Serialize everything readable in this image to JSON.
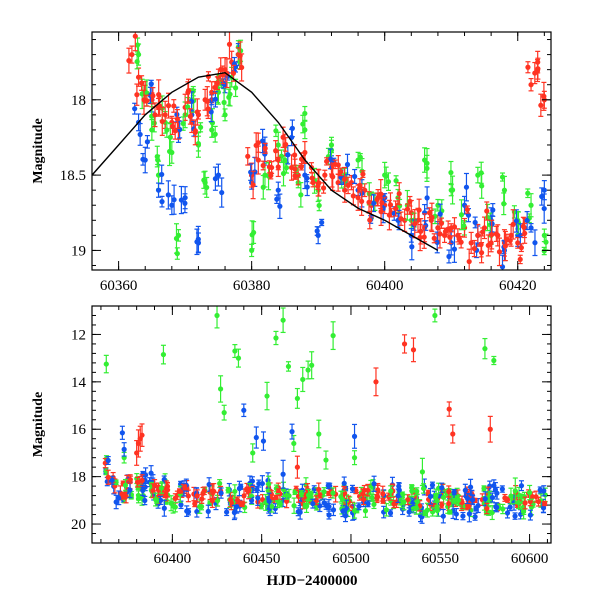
{
  "figure": {
    "xlabel": "HJD−2400000"
  },
  "colors": {
    "green": "#33ee33",
    "blue": "#1155ee",
    "red": "#ff3322",
    "curve": "#000000"
  },
  "chart_data": [
    {
      "type": "scatter",
      "title": "",
      "xlabel": "",
      "ylabel": "Magnitude",
      "xlim": [
        60356,
        60425
      ],
      "ylim": [
        19.13,
        17.55
      ],
      "y_inverted": true,
      "grid": false,
      "x_ticks": [
        60360,
        60380,
        60400,
        60420
      ],
      "y_ticks": [
        18,
        18.5,
        19
      ],
      "error_bars": true,
      "series": [
        {
          "color": "green",
          "points": [
            [
              60363,
              17.7
            ],
            [
              60364,
              17.95
            ],
            [
              60365,
              18.2
            ],
            [
              60366,
              18.5
            ],
            [
              60367,
              18.15
            ],
            [
              60368,
              18.35
            ],
            [
              60369,
              18.9
            ],
            [
              60370,
              18.1
            ],
            [
              60371,
              18.0
            ],
            [
              60372,
              18.3
            ],
            [
              60373,
              18.55
            ],
            [
              60374,
              18.2
            ],
            [
              60375,
              17.95
            ],
            [
              60376,
              18.1
            ],
            [
              60377,
              17.85
            ],
            [
              60378,
              17.65
            ],
            [
              60380,
              19.0
            ],
            [
              60382,
              18.5
            ],
            [
              60384,
              18.3
            ],
            [
              60385,
              18.4
            ],
            [
              60387,
              18.55
            ],
            [
              60388,
              18.2
            ],
            [
              60390,
              18.6
            ],
            [
              60392,
              18.3
            ],
            [
              60394,
              18.5
            ],
            [
              60396,
              18.4
            ],
            [
              60398,
              18.7
            ],
            [
              60400,
              18.5
            ],
            [
              60402,
              18.65
            ],
            [
              60404,
              18.8
            ],
            [
              60406,
              18.4
            ],
            [
              60408,
              18.7
            ],
            [
              60410,
              18.6
            ],
            [
              60412,
              18.85
            ],
            [
              60414,
              18.5
            ],
            [
              60416,
              18.9
            ],
            [
              60418,
              18.6
            ],
            [
              60420,
              18.8
            ],
            [
              60422,
              18.7
            ],
            [
              60424,
              18.9
            ]
          ]
        },
        {
          "color": "blue",
          "points": [
            [
              60363,
              18.15
            ],
            [
              60364,
              18.4
            ],
            [
              60365,
              18.0
            ],
            [
              60366,
              18.6
            ],
            [
              60368,
              18.7
            ],
            [
              60369,
              18.2
            ],
            [
              60370,
              18.65
            ],
            [
              60371,
              18.1
            ],
            [
              60372,
              18.95
            ],
            [
              60374,
              18.0
            ],
            [
              60375,
              18.5
            ],
            [
              60376,
              17.9
            ],
            [
              60378,
              17.7
            ],
            [
              60380,
              18.55
            ],
            [
              60382,
              18.3
            ],
            [
              60384,
              18.6
            ],
            [
              60386,
              18.25
            ],
            [
              60388,
              18.5
            ],
            [
              60390,
              18.9
            ],
            [
              60392,
              18.4
            ],
            [
              60394,
              18.55
            ],
            [
              60396,
              18.6
            ],
            [
              60398,
              18.7
            ],
            [
              60400,
              18.65
            ],
            [
              60402,
              18.8
            ],
            [
              60404,
              18.9
            ],
            [
              60406,
              18.75
            ],
            [
              60408,
              18.85
            ],
            [
              60410,
              18.95
            ],
            [
              60412,
              18.7
            ],
            [
              60414,
              18.9
            ],
            [
              60416,
              18.8
            ],
            [
              60418,
              19.0
            ],
            [
              60420,
              18.9
            ],
            [
              60422,
              18.85
            ],
            [
              60424,
              18.6
            ]
          ]
        },
        {
          "color": "red",
          "points": [
            [
              60362,
              17.7
            ],
            [
              60363,
              17.85
            ],
            [
              60364,
              17.95
            ],
            [
              60365,
              18.0
            ],
            [
              60366,
              18.05
            ],
            [
              60367,
              18.1
            ],
            [
              60368,
              18.15
            ],
            [
              60369,
              18.2
            ],
            [
              60370,
              18.05
            ],
            [
              60371,
              18.15
            ],
            [
              60372,
              18.1
            ],
            [
              60373,
              18.0
            ],
            [
              60374,
              17.95
            ],
            [
              60375,
              17.85
            ],
            [
              60376,
              17.8
            ],
            [
              60377,
              17.75
            ],
            [
              60378,
              17.7
            ],
            [
              60380,
              18.5
            ],
            [
              60381,
              18.4
            ],
            [
              60382,
              18.35
            ],
            [
              60383,
              18.45
            ],
            [
              60384,
              18.4
            ],
            [
              60385,
              18.3
            ],
            [
              60386,
              18.45
            ],
            [
              60387,
              18.5
            ],
            [
              60388,
              18.35
            ],
            [
              60389,
              18.45
            ],
            [
              60390,
              18.55
            ],
            [
              60391,
              18.5
            ],
            [
              60392,
              18.45
            ],
            [
              60393,
              18.55
            ],
            [
              60394,
              18.6
            ],
            [
              60395,
              18.55
            ],
            [
              60396,
              18.65
            ],
            [
              60397,
              18.6
            ],
            [
              60398,
              18.7
            ],
            [
              60399,
              18.65
            ],
            [
              60400,
              18.7
            ],
            [
              60401,
              18.75
            ],
            [
              60402,
              18.7
            ],
            [
              60403,
              18.8
            ],
            [
              60404,
              18.75
            ],
            [
              60405,
              18.8
            ],
            [
              60406,
              18.85
            ],
            [
              60407,
              18.8
            ],
            [
              60408,
              18.85
            ],
            [
              60409,
              18.9
            ],
            [
              60410,
              18.85
            ],
            [
              60411,
              18.9
            ],
            [
              60412,
              18.85
            ],
            [
              60413,
              18.95
            ],
            [
              60414,
              18.9
            ],
            [
              60415,
              18.85
            ],
            [
              60416,
              18.95
            ],
            [
              60417,
              18.9
            ],
            [
              60418,
              18.95
            ],
            [
              60419,
              18.9
            ],
            [
              60420,
              18.95
            ],
            [
              60421,
              18.85
            ],
            [
              60422,
              17.9
            ],
            [
              60423,
              17.75
            ],
            [
              60424,
              18.0
            ]
          ]
        }
      ],
      "model_curve": {
        "color": "curve",
        "x": [
          60356,
          60360,
          60364,
          60368,
          60372,
          60376,
          60380,
          60384,
          60388,
          60392,
          60396,
          60400,
          60404,
          60408
        ],
        "y": [
          18.5,
          18.3,
          18.1,
          17.95,
          17.85,
          17.82,
          17.95,
          18.15,
          18.4,
          18.6,
          18.72,
          18.8,
          18.9,
          19.0
        ]
      }
    },
    {
      "type": "scatter",
      "title": "",
      "xlabel": "HJD−2400000",
      "ylabel": "Magnitude",
      "xlim": [
        60355,
        60612
      ],
      "ylim": [
        20.8,
        10.8
      ],
      "y_inverted": true,
      "grid": false,
      "x_ticks": [
        60400,
        60450,
        60500,
        60550,
        60600
      ],
      "y_ticks": [
        12,
        14,
        16,
        18,
        20
      ],
      "error_bars": true,
      "series": [
        {
          "color": "green",
          "points": [
            [
              60363,
              13.25
            ],
            [
              60373,
              17.2
            ],
            [
              60395,
              12.85
            ],
            [
              60425,
              11.2
            ],
            [
              60427,
              14.3
            ],
            [
              60429,
              15.3
            ],
            [
              60435,
              12.7
            ],
            [
              60437,
              13.0
            ],
            [
              60445,
              17.0
            ],
            [
              60453,
              14.6
            ],
            [
              60458,
              12.15
            ],
            [
              60462,
              11.4
            ],
            [
              60465,
              13.35
            ],
            [
              60468,
              16.6
            ],
            [
              60470,
              14.7
            ],
            [
              60473,
              13.9
            ],
            [
              60476,
              13.5
            ],
            [
              60478,
              13.3
            ],
            [
              60482,
              16.2
            ],
            [
              60486,
              17.3
            ],
            [
              60490,
              12.05
            ],
            [
              60502,
              17.2
            ],
            [
              60540,
              17.8
            ],
            [
              60547,
              11.2
            ],
            [
              60575,
              12.6
            ],
            [
              60580,
              13.1
            ],
            [
              60592,
              18.6
            ]
          ]
        },
        {
          "color": "blue",
          "points": [
            [
              60372,
              16.15
            ],
            [
              60373,
              16.85
            ],
            [
              60440,
              15.2
            ],
            [
              60447,
              16.35
            ],
            [
              60451,
              16.5
            ],
            [
              60462,
              17.9
            ],
            [
              60467,
              16.1
            ],
            [
              60502,
              16.3
            ]
          ]
        },
        {
          "color": "red",
          "points": [
            [
              60380,
              17.0
            ],
            [
              60381,
              16.6
            ],
            [
              60382,
              16.4
            ],
            [
              60383,
              16.25
            ],
            [
              60470,
              17.6
            ],
            [
              60514,
              14.0
            ],
            [
              60530,
              12.4
            ],
            [
              60535,
              12.65
            ],
            [
              60555,
              15.15
            ],
            [
              60557,
              16.2
            ],
            [
              60578,
              16.0
            ]
          ]
        }
      ],
      "dense_band": {
        "x": [
          60362,
          60370,
          60380,
          60390,
          60400,
          60410,
          60420,
          60440,
          60460,
          60480,
          60500,
          60520,
          60540,
          60560,
          60580,
          60600,
          60610
        ],
        "y": [
          17.6,
          18.5,
          18.4,
          18.5,
          18.7,
          18.8,
          18.75,
          18.8,
          18.7,
          18.85,
          18.9,
          18.85,
          18.95,
          18.9,
          19.0,
          18.95,
          19.1
        ]
      }
    }
  ]
}
